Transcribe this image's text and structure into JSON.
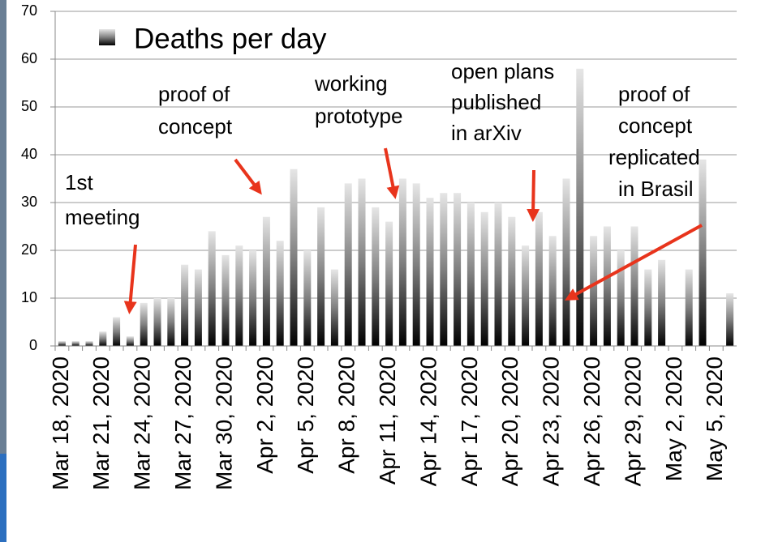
{
  "chart_data": {
    "type": "bar",
    "legend": "Deaths per day",
    "categories": [
      "Mar 18, 2020",
      null,
      null,
      "Mar 21, 2020",
      null,
      null,
      "Mar 24, 2020",
      null,
      null,
      "Mar 27, 2020",
      null,
      null,
      "Mar 30, 2020",
      null,
      null,
      "Apr 2, 2020",
      null,
      null,
      "Apr 5, 2020",
      null,
      null,
      "Apr 8, 2020",
      null,
      null,
      "Apr 11, 2020",
      null,
      null,
      "Apr 14, 2020",
      null,
      null,
      "Apr 17, 2020",
      null,
      null,
      "Apr 20, 2020",
      null,
      null,
      "Apr 23, 2020",
      null,
      null,
      "Apr 26, 2020",
      null,
      null,
      "Apr 29, 2020",
      null,
      null,
      "May 2, 2020",
      null,
      null,
      "May 5, 2020",
      null
    ],
    "series": [
      {
        "name": "Deaths per day",
        "color": "#808080",
        "values": [
          1,
          1,
          1,
          3,
          6,
          2,
          9,
          10,
          10,
          17,
          16,
          24,
          19,
          21,
          20,
          27,
          22,
          37,
          20,
          29,
          16,
          34,
          35,
          29,
          26,
          35,
          34,
          31,
          32,
          32,
          30,
          28,
          30,
          27,
          21,
          28,
          23,
          35,
          58,
          23,
          25,
          20,
          25,
          16,
          18,
          null,
          16,
          39,
          null,
          11
        ]
      }
    ],
    "ylim": [
      0,
      70
    ],
    "yticks": [
      0,
      10,
      20,
      30,
      40,
      50,
      60,
      70
    ],
    "grid": true,
    "annotations": [
      {
        "lines": [
          "1st",
          "meeting"
        ]
      },
      {
        "lines": [
          "proof of",
          "concept"
        ]
      },
      {
        "lines": [
          "working",
          "prototype"
        ]
      },
      {
        "lines": [
          "open plans",
          "published",
          "in arXiv"
        ]
      },
      {
        "lines": [
          "proof of",
          "concept",
          "replicated",
          "in Brasil"
        ]
      }
    ]
  }
}
